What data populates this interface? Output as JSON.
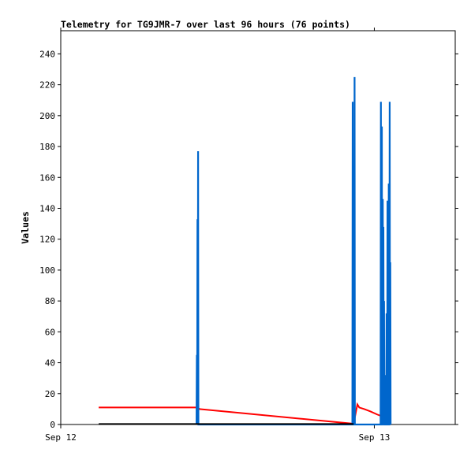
{
  "chart_data": {
    "type": "line",
    "title": "Telemetry for TG9JMR-7 over last 96 hours (76 points)",
    "xlabel": "",
    "ylabel": "Values",
    "xlim": [
      0,
      1.258
    ],
    "ylim": [
      0,
      255
    ],
    "yticks": [
      0,
      20,
      40,
      60,
      80,
      100,
      120,
      140,
      160,
      180,
      200,
      220,
      240
    ],
    "xticks": [
      {
        "value": 0,
        "label": "Sep 12"
      },
      {
        "value": 1,
        "label": "Sep 13"
      }
    ],
    "grid": false,
    "legend": "none",
    "series": [
      {
        "color": "#ff0000",
        "points": [
          [
            0.121,
            11.0
          ],
          [
            0.436,
            11.0
          ],
          [
            0.443,
            10.0
          ],
          [
            0.934,
            0.5
          ],
          [
            0.946,
            13.0
          ],
          [
            0.952,
            11.0
          ],
          [
            0.968,
            10.0
          ],
          [
            0.987,
            8.5
          ],
          [
            1.009,
            6.5
          ],
          [
            1.022,
            5.5
          ],
          [
            1.035,
            4.0
          ]
        ]
      },
      {
        "color": "#0066cc",
        "points": [
          [
            0.433,
            0
          ],
          [
            0.434,
            45
          ],
          [
            0.435,
            0
          ],
          [
            0.436,
            133
          ],
          [
            0.437,
            0
          ],
          [
            0.438,
            177
          ],
          [
            0.439,
            0
          ],
          [
            0.93,
            0
          ],
          [
            0.931,
            209
          ],
          [
            0.932,
            0
          ],
          [
            0.936,
            0
          ],
          [
            0.937,
            225
          ],
          [
            0.938,
            0
          ],
          [
            1.02,
            0
          ],
          [
            1.021,
            209
          ],
          [
            1.022,
            0
          ],
          [
            1.023,
            0
          ],
          [
            1.024,
            193
          ],
          [
            1.025,
            0
          ],
          [
            1.026,
            0
          ],
          [
            1.027,
            146
          ],
          [
            1.028,
            0
          ],
          [
            1.029,
            128
          ],
          [
            1.03,
            0
          ],
          [
            1.031,
            80
          ],
          [
            1.032,
            0
          ],
          [
            1.034,
            0
          ],
          [
            1.035,
            32
          ],
          [
            1.036,
            0
          ],
          [
            1.038,
            0
          ],
          [
            1.039,
            72
          ],
          [
            1.04,
            0
          ],
          [
            1.041,
            0
          ],
          [
            1.042,
            145
          ],
          [
            1.043,
            0
          ],
          [
            1.045,
            0
          ],
          [
            1.046,
            156
          ],
          [
            1.047,
            0
          ],
          [
            1.048,
            0
          ],
          [
            1.049,
            209
          ],
          [
            1.05,
            0
          ],
          [
            1.051,
            105
          ],
          [
            1.052,
            0
          ]
        ]
      },
      {
        "color": "#000000",
        "points": [
          [
            0.121,
            0.3
          ],
          [
            0.934,
            0.3
          ]
        ]
      }
    ]
  }
}
